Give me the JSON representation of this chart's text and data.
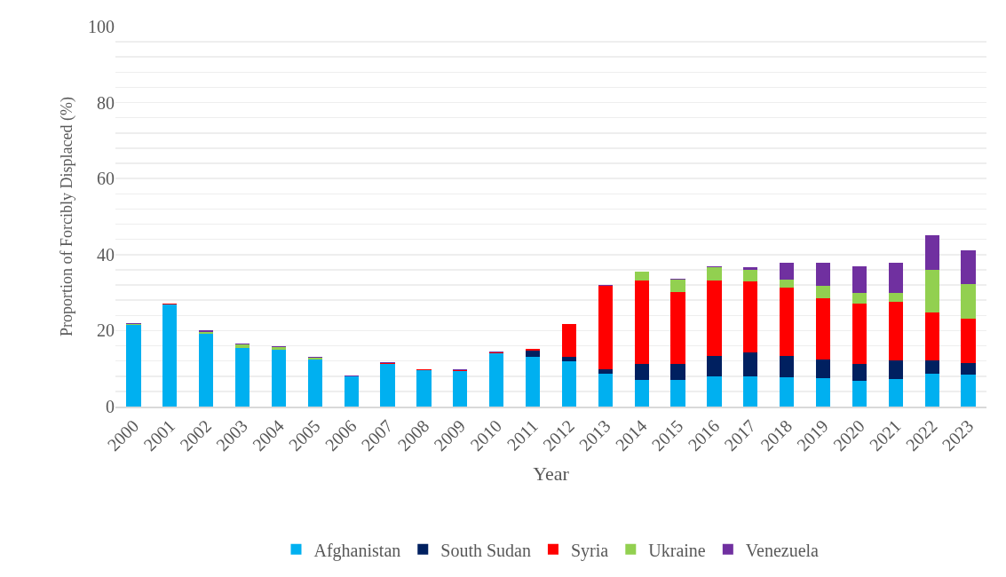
{
  "chart_data": {
    "type": "bar",
    "stacked": true,
    "xlabel": "Year",
    "ylabel": "Proportion of Forcibly Displaced (%)",
    "categories": [
      "2000",
      "2001",
      "2002",
      "2003",
      "2004",
      "2005",
      "2006",
      "2007",
      "2008",
      "2009",
      "2010",
      "2011",
      "2012",
      "2013",
      "2014",
      "2015",
      "2016",
      "2017",
      "2018",
      "2019",
      "2020",
      "2021",
      "2022",
      "2023"
    ],
    "series": [
      {
        "name": "Afghanistan",
        "color": "#00b0f0",
        "values": [
          21.6,
          26.8,
          19.1,
          15.4,
          15.0,
          12.5,
          8.0,
          11.2,
          9.5,
          9.3,
          14.1,
          13.0,
          11.9,
          8.6,
          7.0,
          6.9,
          7.9,
          7.9,
          7.6,
          7.5,
          6.7,
          7.2,
          8.6,
          8.5
        ]
      },
      {
        "name": "South Sudan",
        "color": "#002060",
        "values": [
          0,
          0,
          0,
          0,
          0,
          0,
          0,
          0,
          0,
          0,
          0,
          1.7,
          1.2,
          1.2,
          4.2,
          4.2,
          5.4,
          6.4,
          5.7,
          4.9,
          4.5,
          4.9,
          3.5,
          2.9
        ]
      },
      {
        "name": "Syria",
        "color": "#ff0000",
        "values": [
          0,
          0.2,
          0,
          0,
          0,
          0,
          0,
          0.2,
          0.2,
          0.2,
          0.1,
          0.4,
          8.6,
          22.0,
          22.0,
          19.0,
          19.9,
          18.6,
          17.9,
          16.2,
          15.8,
          15.4,
          12.6,
          11.7
        ]
      },
      {
        "name": "Ukraine",
        "color": "#92d050",
        "values": [
          0.1,
          0,
          0.6,
          1.0,
          0.6,
          0.4,
          0,
          0,
          0.2,
          0,
          0,
          0,
          0,
          0,
          2.2,
          3.3,
          3.5,
          3.0,
          2.3,
          3.2,
          2.9,
          2.5,
          11.3,
          9.1
        ]
      },
      {
        "name": "Venezuela",
        "color": "#7030a0",
        "values": [
          0.3,
          0.2,
          0.3,
          0.2,
          0.2,
          0.2,
          0.2,
          0.2,
          0,
          0.2,
          0.2,
          0,
          null,
          0.2,
          null,
          0.2,
          0.2,
          0.7,
          4.3,
          6.1,
          7.1,
          7.8,
          9.2,
          9.0
        ]
      }
    ],
    "ylim": [
      0,
      100
    ],
    "yticks": [
      0,
      {
        "value": 4,
        "label": null
      },
      {
        "value": 8,
        "label": null
      },
      {
        "value": 12,
        "label": null
      },
      {
        "value": 16,
        "label": null
      },
      20,
      {
        "value": 24,
        "label": null
      },
      {
        "value": 28,
        "label": null
      },
      {
        "value": 32,
        "label": null
      },
      {
        "value": 36,
        "label": null
      },
      40,
      {
        "value": 44,
        "label": null
      },
      {
        "value": 48,
        "label": null
      },
      {
        "value": 52,
        "label": null
      },
      {
        "value": 56,
        "label": null
      },
      60,
      {
        "value": 64,
        "label": null
      },
      {
        "value": 68,
        "label": null
      },
      {
        "value": 72,
        "label": null
      },
      {
        "value": 76,
        "label": null
      },
      80,
      {
        "value": 84,
        "label": null
      },
      {
        "value": 88,
        "label": null
      },
      {
        "value": 92,
        "label": null
      },
      {
        "value": 96,
        "label": null
      },
      100
    ],
    "grid": "y",
    "legend": "bottom"
  }
}
